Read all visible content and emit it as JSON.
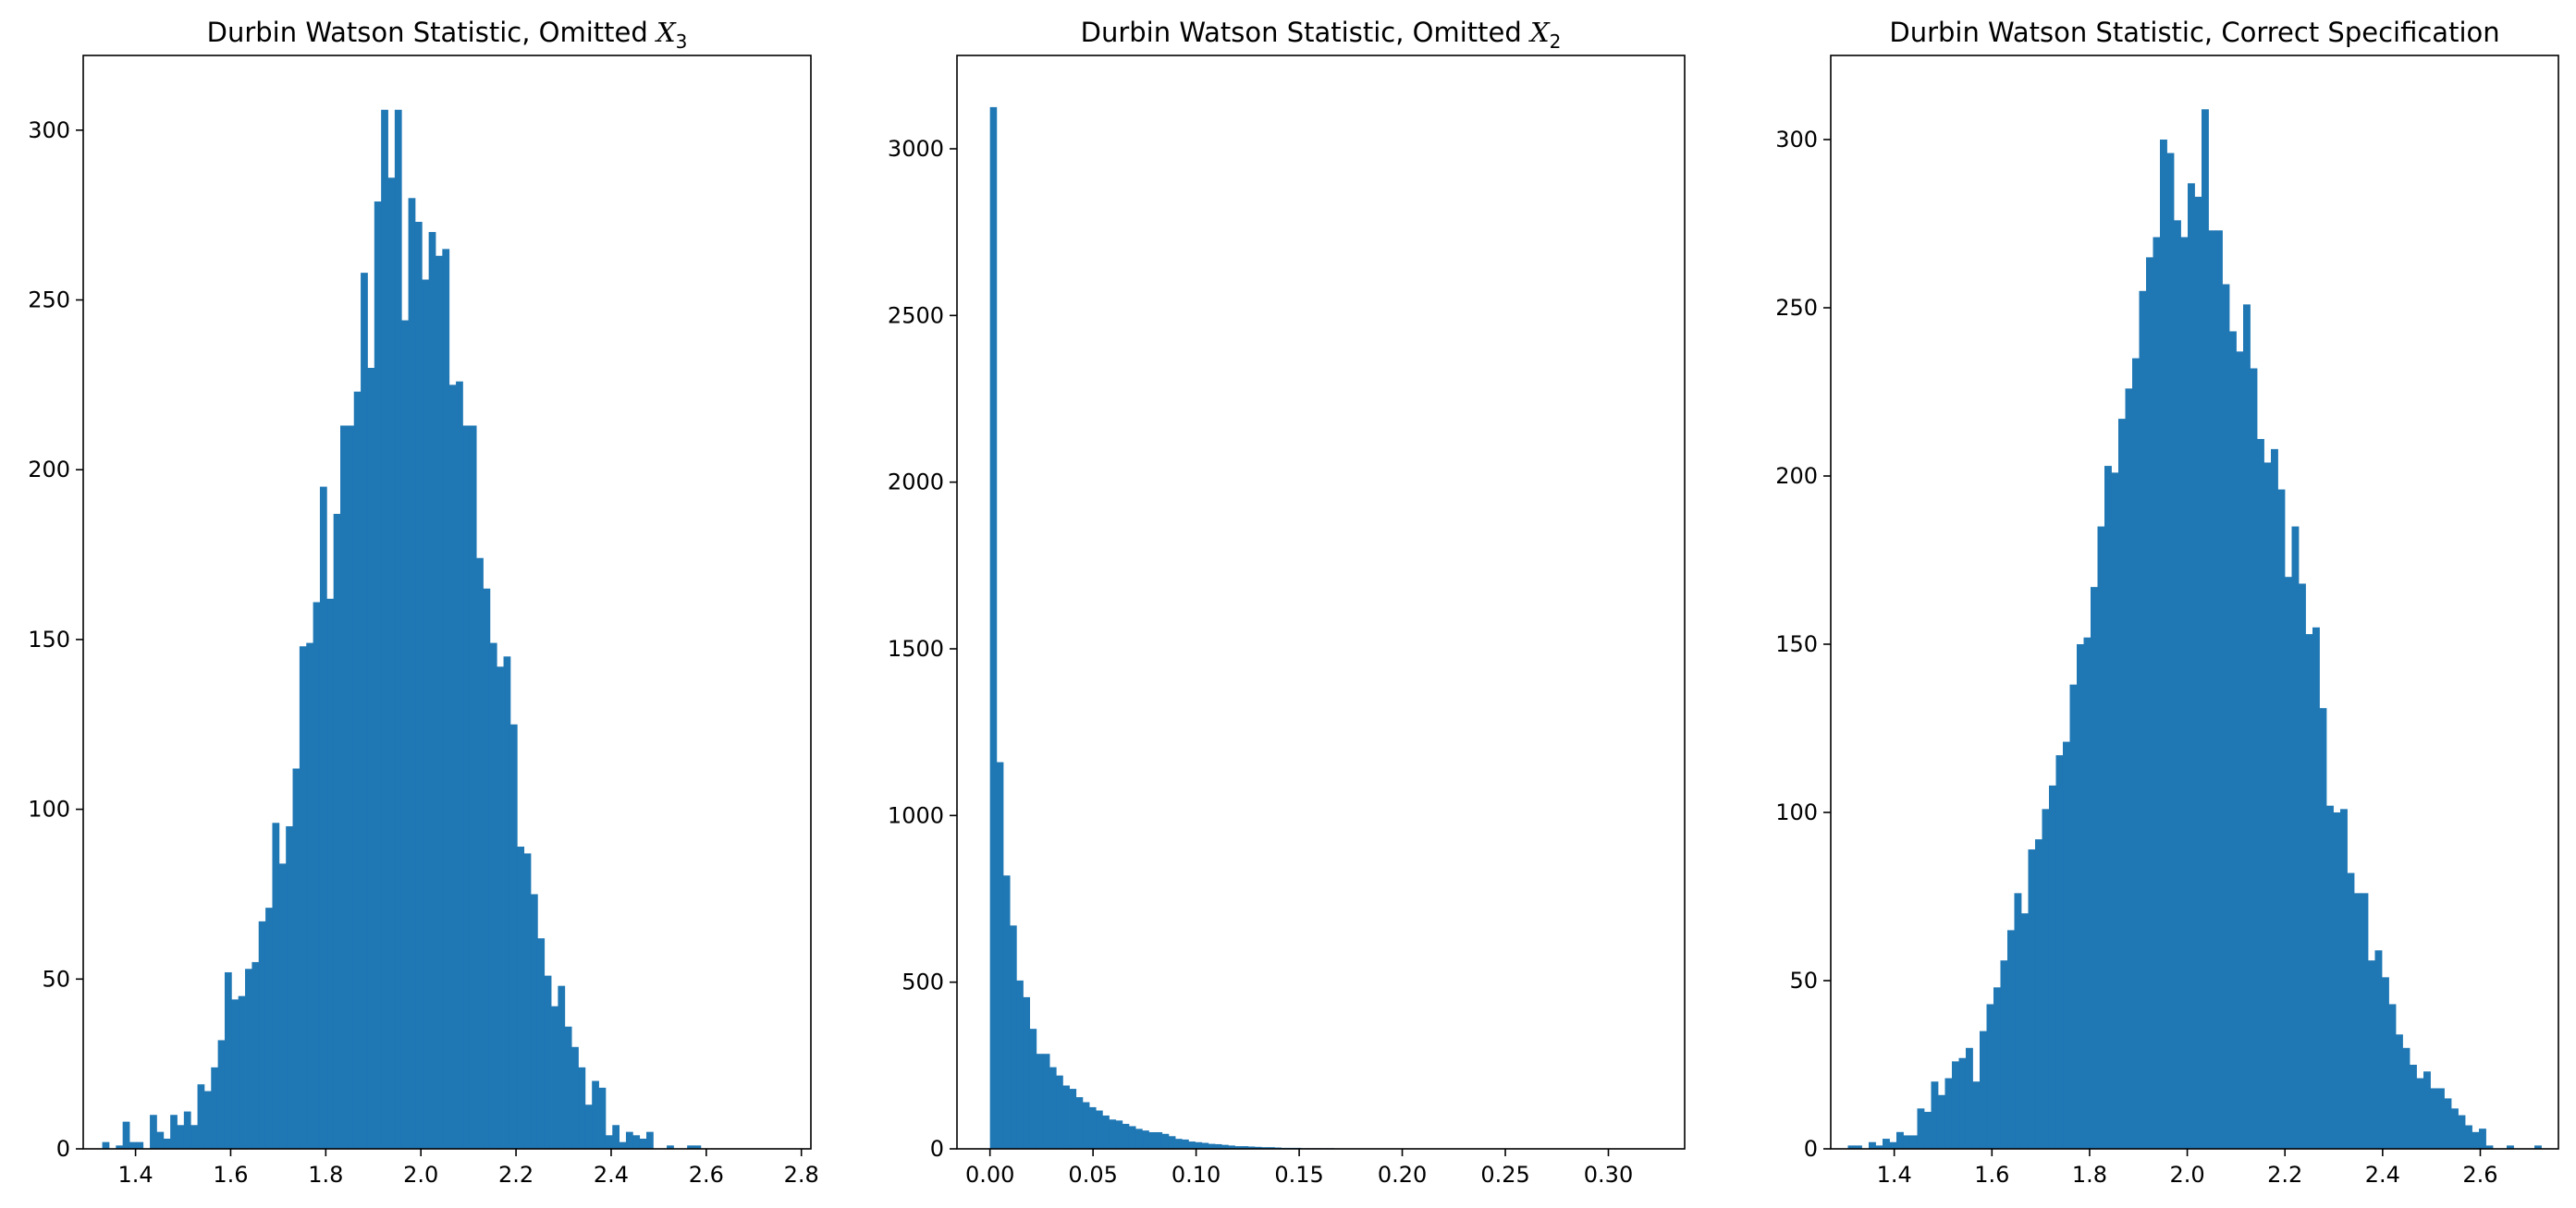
{
  "figure": {
    "bar_color": "#1f77b4",
    "axis_color": "#000000"
  },
  "chart_data": [
    {
      "type": "bar",
      "title": "Durbin Watson Statistic, Omitted ",
      "title_math": "X",
      "title_sub": "3",
      "xlabel": "",
      "ylabel": "",
      "xlim": [
        1.29,
        2.82
      ],
      "ylim": [
        0,
        322
      ],
      "xticks": [
        1.4,
        1.6,
        1.8,
        2.0,
        2.2,
        2.4,
        2.6,
        2.8
      ],
      "xtick_labels": [
        "1.4",
        "1.6",
        "1.8",
        "2.0",
        "2.2",
        "2.4",
        "2.6",
        "2.8"
      ],
      "yticks": [
        0,
        50,
        100,
        150,
        200,
        250,
        300
      ],
      "ytick_labels": [
        "0",
        "50",
        "100",
        "150",
        "200",
        "250",
        "300"
      ],
      "bin_start": 1.33,
      "bin_width": 0.0143,
      "values": [
        2,
        0,
        1,
        8,
        2,
        2,
        0,
        10,
        5,
        3,
        10,
        7,
        11,
        7,
        19,
        17,
        24,
        32,
        52,
        44,
        45,
        53,
        55,
        67,
        71,
        96,
        84,
        95,
        112,
        148,
        149,
        161,
        195,
        162,
        187,
        213,
        213,
        223,
        258,
        230,
        279,
        306,
        286,
        306,
        244,
        280,
        273,
        256,
        270,
        263,
        265,
        225,
        226,
        213,
        213,
        174,
        165,
        149,
        142,
        145,
        125,
        89,
        87,
        75,
        62,
        51,
        42,
        48,
        36,
        30,
        24,
        13,
        20,
        18,
        4,
        7,
        2,
        5,
        4,
        3,
        5,
        0,
        0,
        1,
        0,
        0,
        1,
        1
      ]
    },
    {
      "type": "bar",
      "title": "Durbin Watson Statistic, Omitted ",
      "title_math": "X",
      "title_sub": "2",
      "xlabel": "",
      "ylabel": "",
      "xlim": [
        -0.016,
        0.337
      ],
      "ylim": [
        0,
        3280
      ],
      "xticks": [
        0.0,
        0.05,
        0.1,
        0.15,
        0.2,
        0.25,
        0.3
      ],
      "xtick_labels": [
        "0.00",
        "0.05",
        "0.10",
        "0.15",
        "0.20",
        "0.25",
        "0.30"
      ],
      "yticks": [
        0,
        500,
        1000,
        1500,
        2000,
        2500,
        3000
      ],
      "ytick_labels": [
        "0",
        "500",
        "1000",
        "1500",
        "2000",
        "2500",
        "3000"
      ],
      "bin_start": 0.0,
      "bin_width": 0.00321,
      "values": [
        3125,
        1160,
        820,
        670,
        505,
        455,
        360,
        285,
        285,
        245,
        220,
        190,
        180,
        155,
        140,
        125,
        115,
        100,
        88,
        85,
        75,
        68,
        60,
        55,
        50,
        50,
        45,
        38,
        30,
        28,
        22,
        20,
        18,
        15,
        14,
        12,
        10,
        8,
        8,
        7,
        6,
        5,
        5,
        4,
        3,
        3,
        3,
        2,
        2,
        2,
        2,
        2,
        1,
        1,
        1,
        1,
        1,
        1,
        1,
        0,
        1,
        0,
        1,
        0,
        0,
        1,
        0,
        0,
        0,
        0,
        1,
        0,
        0,
        0,
        0,
        0,
        0,
        0,
        0,
        0,
        0,
        0,
        0,
        0,
        0,
        0,
        0,
        0,
        0,
        0,
        0,
        0,
        0,
        0,
        0,
        0,
        0,
        0,
        0,
        1
      ]
    },
    {
      "type": "bar",
      "title": "Durbin Watson Statistic, Correct Specification",
      "xlabel": "",
      "ylabel": "",
      "xlim": [
        1.27,
        2.76
      ],
      "ylim": [
        0,
        325
      ],
      "xticks": [
        1.4,
        1.6,
        1.8,
        2.0,
        2.2,
        2.4,
        2.6
      ],
      "xtick_labels": [
        "1.4",
        "1.6",
        "1.8",
        "2.0",
        "2.2",
        "2.4",
        "2.6"
      ],
      "yticks": [
        0,
        50,
        100,
        150,
        200,
        250,
        300
      ],
      "ytick_labels": [
        "0",
        "50",
        "100",
        "150",
        "200",
        "250",
        "300"
      ],
      "bin_start": 1.305,
      "bin_width": 0.0142,
      "values": [
        1,
        1,
        0,
        2,
        1,
        3,
        2,
        5,
        4,
        4,
        12,
        11,
        20,
        16,
        21,
        26,
        27,
        30,
        20,
        35,
        43,
        48,
        56,
        65,
        76,
        70,
        89,
        92,
        101,
        108,
        117,
        121,
        138,
        150,
        152,
        167,
        185,
        203,
        201,
        217,
        226,
        235,
        255,
        265,
        271,
        300,
        296,
        276,
        271,
        287,
        283,
        309,
        273,
        273,
        257,
        243,
        237,
        251,
        232,
        211,
        204,
        208,
        196,
        170,
        185,
        168,
        153,
        155,
        131,
        102,
        100,
        101,
        82,
        76,
        76,
        56,
        59,
        51,
        43,
        34,
        30,
        25,
        21,
        23,
        18,
        18,
        15,
        12,
        10,
        7,
        5,
        6,
        1,
        0,
        0,
        1,
        0,
        0,
        0,
        1
      ]
    }
  ]
}
